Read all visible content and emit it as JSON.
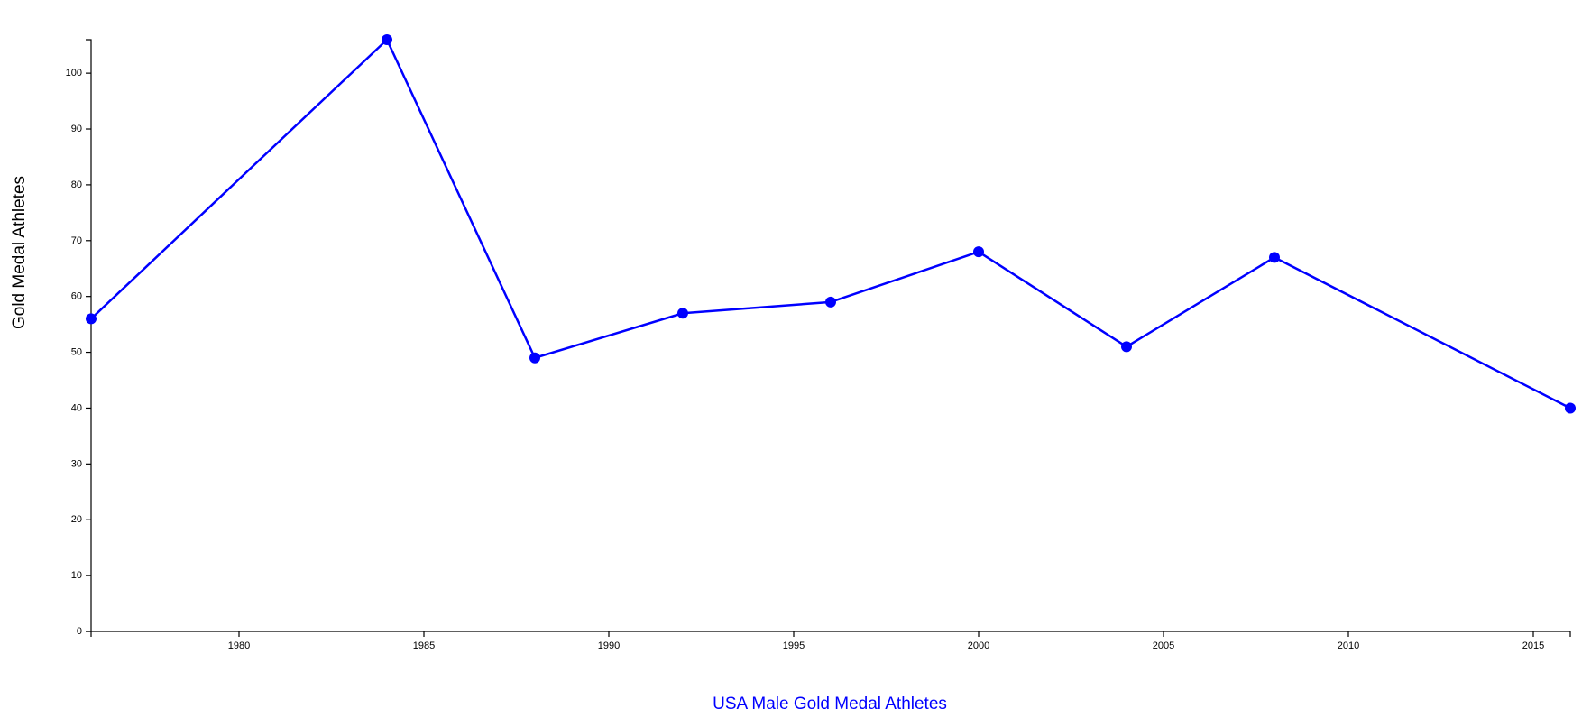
{
  "chart_data": {
    "type": "line",
    "xlabel": "USA Male Gold Medal Athletes",
    "ylabel": "Gold Medal Athletes",
    "x": [
      1976,
      1984,
      1988,
      1992,
      1996,
      2000,
      2004,
      2008,
      2016
    ],
    "series": [
      {
        "values": [
          56,
          106,
          49,
          57,
          59,
          68,
          51,
          67,
          40
        ]
      }
    ],
    "xlim": [
      1976,
      2016
    ],
    "ylim": [
      0,
      106
    ],
    "x_ticks": [
      "1980",
      "1985",
      "1990",
      "1995",
      "2000",
      "2005",
      "2010",
      "2015"
    ],
    "y_ticks": [
      "0",
      "10",
      "20",
      "30",
      "40",
      "50",
      "60",
      "70",
      "80",
      "90",
      "100"
    ],
    "grid": false,
    "colors": {
      "line": "#0000ff",
      "xlabel": "#0000ff",
      "ylabel": "#000000",
      "axis": "#000000"
    }
  }
}
